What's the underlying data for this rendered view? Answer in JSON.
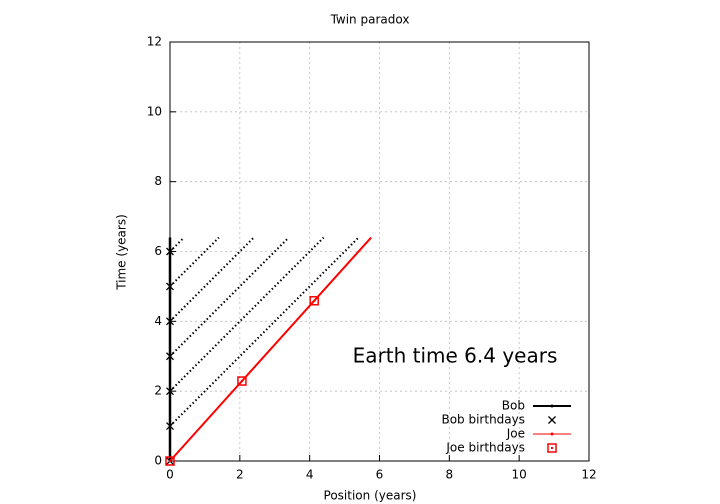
{
  "chart_data": {
    "type": "line",
    "title": "Twin paradox",
    "xlabel": "Position (years)",
    "ylabel": "Time (years)",
    "annotation": "Earth time  6.4 years",
    "xlim": [
      0,
      12
    ],
    "ylim": [
      0,
      12
    ],
    "xticks": [
      0,
      2,
      4,
      6,
      8,
      10,
      12
    ],
    "yticks": [
      0,
      2,
      4,
      6,
      8,
      10,
      12
    ],
    "grid": true,
    "legend": "lower right",
    "series": [
      {
        "name": "Bob",
        "kind": "line",
        "color": "#000000",
        "x": [
          0,
          0
        ],
        "y": [
          0,
          6.4
        ]
      },
      {
        "name": "Bob birthdays",
        "kind": "cross",
        "color": "#000000",
        "x": [
          0,
          0,
          0,
          0,
          0,
          0,
          0
        ],
        "y": [
          0,
          1,
          2,
          3,
          4,
          5,
          6
        ]
      },
      {
        "name": "Joe",
        "kind": "line",
        "color": "#ff0000",
        "x": [
          0,
          5.76
        ],
        "y": [
          0,
          6.4
        ]
      },
      {
        "name": "Joe birthdays",
        "kind": "square",
        "color": "#ff0000",
        "x": [
          0,
          2.06,
          4.13
        ],
        "y": [
          0,
          2.29,
          4.59
        ]
      }
    ],
    "light_signals": {
      "color": "#000000",
      "lines": [
        {
          "x": [
            0,
            5.4
          ],
          "y": [
            1,
            6.4
          ]
        },
        {
          "x": [
            0,
            4.4
          ],
          "y": [
            2,
            6.4
          ]
        },
        {
          "x": [
            0,
            3.4
          ],
          "y": [
            3,
            6.4
          ]
        },
        {
          "x": [
            0,
            2.4
          ],
          "y": [
            4,
            6.4
          ]
        },
        {
          "x": [
            0,
            1.4
          ],
          "y": [
            5,
            6.4
          ]
        },
        {
          "x": [
            0,
            0.4
          ],
          "y": [
            6,
            6.4
          ]
        }
      ]
    }
  }
}
